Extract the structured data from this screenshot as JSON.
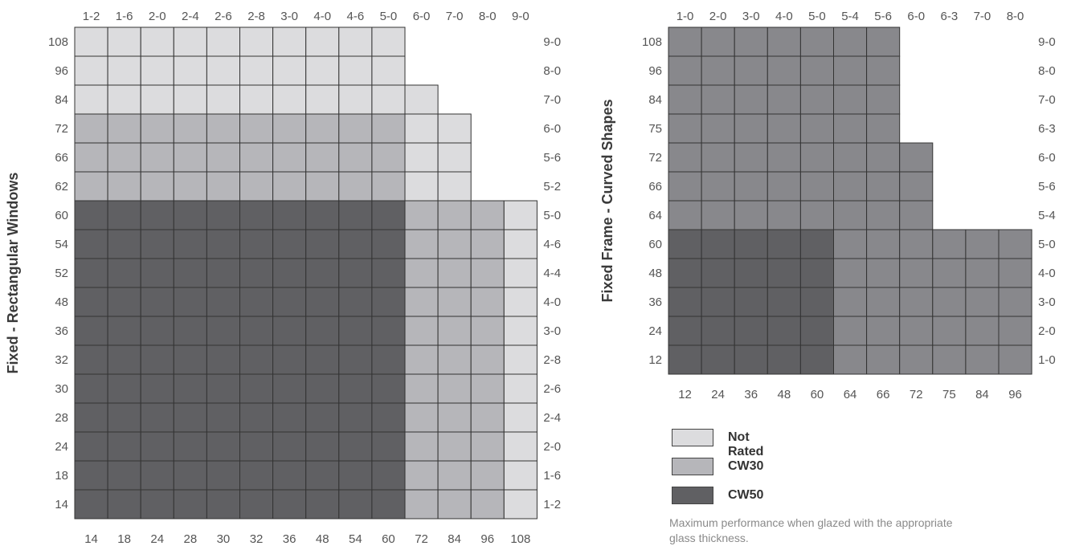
{
  "colors": {
    "not_rated": "#dcdcde",
    "cw30": "#b6b6ba",
    "cw50": "#606063",
    "curved_cw30": "#88888c",
    "grid_line": "#333333",
    "tick_text": "#555555"
  },
  "legend": {
    "items": [
      {
        "label": "Not Rated",
        "color": "#dcdcde"
      },
      {
        "label": "CW30",
        "color": "#b6b6ba"
      },
      {
        "label": "CW50",
        "color": "#606063"
      }
    ]
  },
  "footnote": "Maximum performance when glazed with the appropriate glass thickness.",
  "chart_data": [
    {
      "type": "heatmap",
      "ylabel": "Fixed - Rectangular Windows",
      "x_bottom": [
        "14",
        "18",
        "24",
        "28",
        "30",
        "32",
        "36",
        "48",
        "54",
        "60",
        "72",
        "84",
        "96",
        "108"
      ],
      "x_top": [
        "1-2",
        "1-6",
        "2-0",
        "2-4",
        "2-6",
        "2-8",
        "3-0",
        "4-0",
        "4-6",
        "5-0",
        "6-0",
        "7-0",
        "8-0",
        "9-0"
      ],
      "y_left": [
        "108",
        "96",
        "84",
        "72",
        "66",
        "62",
        "60",
        "54",
        "52",
        "48",
        "36",
        "32",
        "30",
        "28",
        "24",
        "18",
        "14"
      ],
      "y_right": [
        "9-0",
        "8-0",
        "7-0",
        "6-0",
        "5-6",
        "5-2",
        "5-0",
        "4-6",
        "4-4",
        "4-0",
        "3-0",
        "2-8",
        "2-6",
        "2-4",
        "2-0",
        "1-6",
        "1-2"
      ],
      "rows": [
        "NNNNNNNNNN....",
        "NNNNNNNNNN....",
        "NNNNNNNNNNN...",
        "AAAAAAAAAANN..",
        "AAAAAAAAAANN..",
        "AAAAAAAAAANN..",
        "BBBBBBBBBBAAAN",
        "BBBBBBBBBBAAAN",
        "BBBBBBBBBBAAAN",
        "BBBBBBBBBBAAAN",
        "BBBBBBBBBBAAAN",
        "BBBBBBBBBBAAAN",
        "BBBBBBBBBBAAAN",
        "BBBBBBBBBBAAAN",
        "BBBBBBBBBBAAAN",
        "BBBBBBBBBBAAAN",
        "BBBBBBBBBBAAAN"
      ],
      "cell_key": {
        "N": "Not Rated",
        "A": "CW30",
        "B": "CW50",
        ".": "none"
      }
    },
    {
      "type": "heatmap",
      "ylabel": "Fixed Frame - Curved Shapes",
      "x_bottom": [
        "12",
        "24",
        "36",
        "48",
        "60",
        "64",
        "66",
        "72",
        "75",
        "84",
        "96"
      ],
      "x_top": [
        "1-0",
        "2-0",
        "3-0",
        "4-0",
        "5-0",
        "5-4",
        "5-6",
        "6-0",
        "6-3",
        "7-0",
        "8-0"
      ],
      "y_left": [
        "108",
        "96",
        "84",
        "75",
        "72",
        "66",
        "64",
        "60",
        "48",
        "36",
        "24",
        "12"
      ],
      "y_right": [
        "9-0",
        "8-0",
        "7-0",
        "6-3",
        "6-0",
        "5-6",
        "5-4",
        "5-0",
        "4-0",
        "3-0",
        "2-0",
        "1-0"
      ],
      "rows": [
        "AAAAAAA....",
        "AAAAAAA....",
        "AAAAAAA....",
        "AAAAAAA....",
        "AAAAAAAA...",
        "AAAAAAAA...",
        "AAAAAAAA...",
        "BBBBBAAAAAA",
        "BBBBBAAAAAA",
        "BBBBBAAAAAA",
        "BBBBBAAAAAA",
        "BBBBBAAAAAA"
      ],
      "cell_key": {
        "A": "CW30",
        "B": "CW50",
        ".": "none"
      }
    }
  ]
}
